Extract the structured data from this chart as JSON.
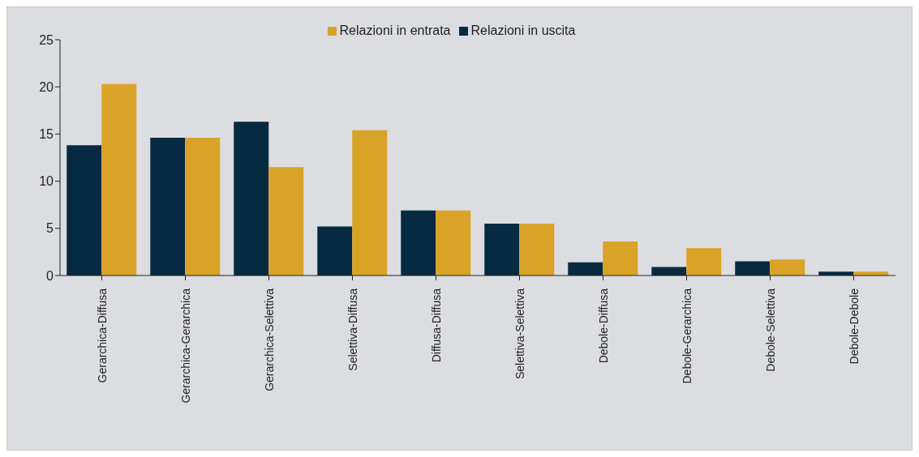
{
  "chart_data": {
    "type": "bar",
    "categories": [
      "Gerarchica-Diffusa",
      "Gerarchica-Gerarchica",
      "Gerarchica-Selettiva",
      "Selettiva-Diffusa",
      "Diffusa-Diffusa",
      "Selettiva-Selettiva",
      "Debole-Diffusa",
      "Debole-Gerarchica",
      "Debole-Selettiva",
      "Debole-Debole"
    ],
    "series": [
      {
        "name": "Relazioni in uscita",
        "color": "#062a42",
        "values": [
          13.8,
          14.6,
          16.3,
          5.2,
          6.9,
          5.5,
          1.4,
          0.9,
          1.5,
          0.4
        ]
      },
      {
        "name": "Relazioni in entrata",
        "color": "#d9a327",
        "values": [
          20.3,
          14.6,
          11.5,
          15.4,
          6.9,
          5.5,
          3.6,
          2.9,
          1.7,
          0.4
        ]
      }
    ],
    "ylim": [
      0,
      25
    ],
    "yticks": [
      0,
      5,
      10,
      15,
      20,
      25
    ],
    "grid": false,
    "legend": "top"
  }
}
